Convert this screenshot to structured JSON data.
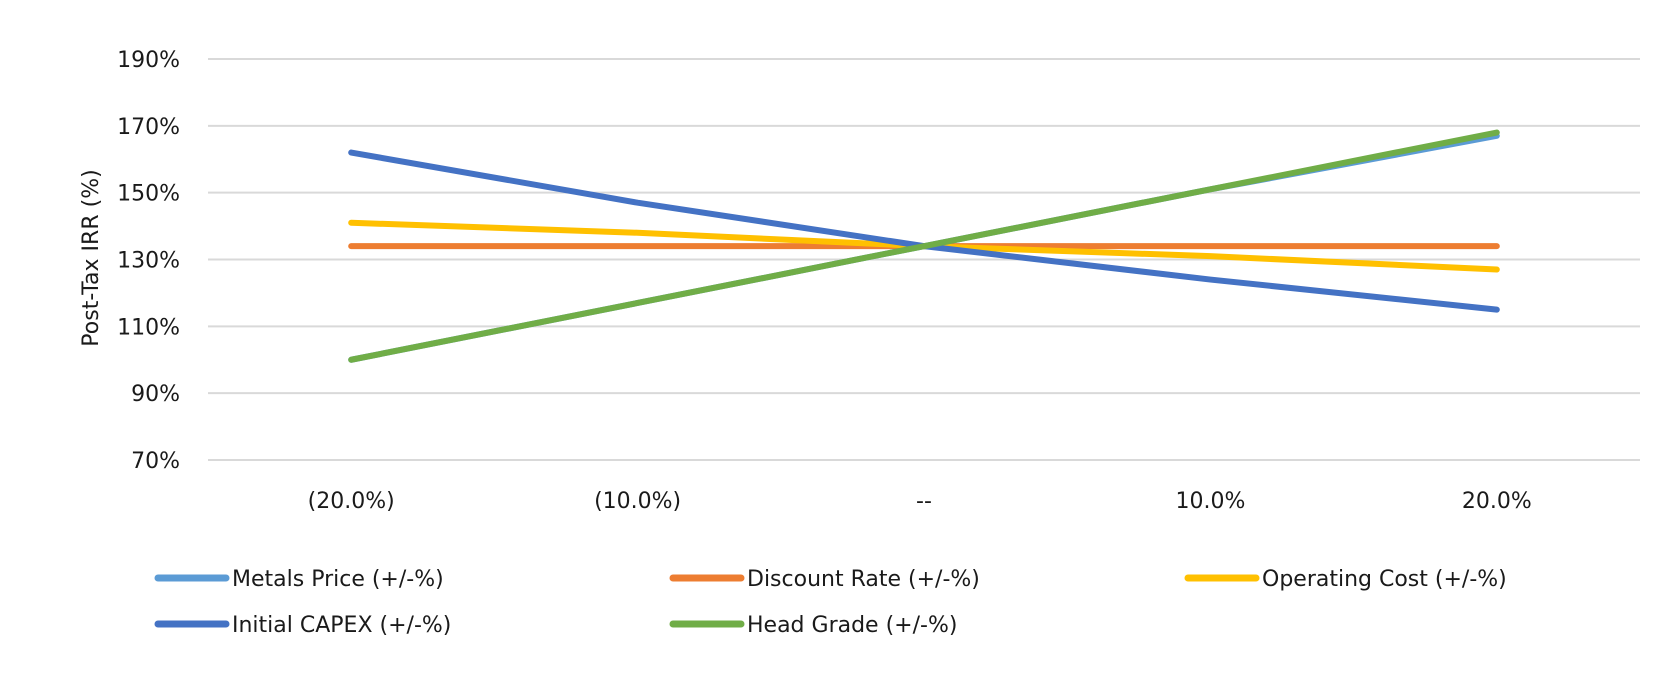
{
  "chart_data": {
    "type": "line",
    "title": "",
    "xlabel": "",
    "ylabel": "Post-Tax IRR (%)",
    "categories": [
      "(20.0%)",
      "(10.0%)",
      "--",
      "10.0%",
      "20.0%"
    ],
    "ylim": [
      70,
      190
    ],
    "yticks": [
      70,
      90,
      110,
      130,
      150,
      170,
      190
    ],
    "ytick_labels": [
      "70%",
      "90%",
      "110%",
      "130%",
      "150%",
      "170%",
      "190%"
    ],
    "grid": "horizontal",
    "legend_position": "bottom",
    "series": [
      {
        "name": "Metals Price (+/-%)",
        "color": "#5B9BD5",
        "values": [
          100,
          117,
          134,
          151,
          167
        ]
      },
      {
        "name": "Discount Rate (+/-%)",
        "color": "#ED7D31",
        "values": [
          134,
          134,
          134,
          134,
          134
        ]
      },
      {
        "name": "Operating Cost (+/-%)",
        "color": "#FFC000",
        "values": [
          141,
          138,
          134,
          131,
          127
        ]
      },
      {
        "name": "Initial CAPEX (+/-%)",
        "color": "#4472C4",
        "values": [
          162,
          147,
          134,
          124,
          115
        ]
      },
      {
        "name": "Head Grade (+/-%)",
        "color": "#70AD47",
        "values": [
          100,
          117,
          134,
          151,
          168
        ]
      }
    ]
  }
}
